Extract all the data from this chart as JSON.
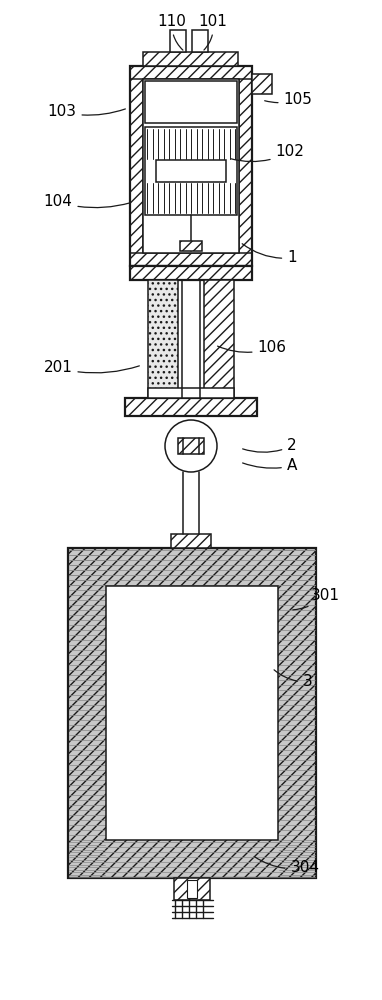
{
  "background_color": "#ffffff",
  "lc": "#1a1a1a",
  "label_fontsize": 11,
  "fig_width": 3.82,
  "fig_height": 10.0,
  "labels": [
    [
      "110",
      172,
      22,
      185,
      52,
      0.25
    ],
    [
      "101",
      213,
      22,
      202,
      52,
      -0.25
    ],
    [
      "103",
      62,
      112,
      128,
      108,
      0.15
    ],
    [
      "105",
      298,
      100,
      262,
      100,
      -0.15
    ],
    [
      "102",
      290,
      152,
      228,
      158,
      -0.2
    ],
    [
      "104",
      58,
      202,
      133,
      202,
      0.15
    ],
    [
      "1",
      292,
      258,
      240,
      242,
      -0.2
    ],
    [
      "106",
      272,
      348,
      215,
      345,
      -0.2
    ],
    [
      "201",
      58,
      368,
      142,
      365,
      0.15
    ],
    [
      "2",
      292,
      446,
      240,
      448,
      -0.2
    ],
    [
      "A",
      292,
      466,
      240,
      462,
      -0.15
    ],
    [
      "301",
      325,
      595,
      290,
      610,
      -0.2
    ],
    [
      "3",
      308,
      682,
      272,
      668,
      -0.2
    ],
    [
      "304",
      305,
      868,
      252,
      855,
      -0.2
    ]
  ]
}
